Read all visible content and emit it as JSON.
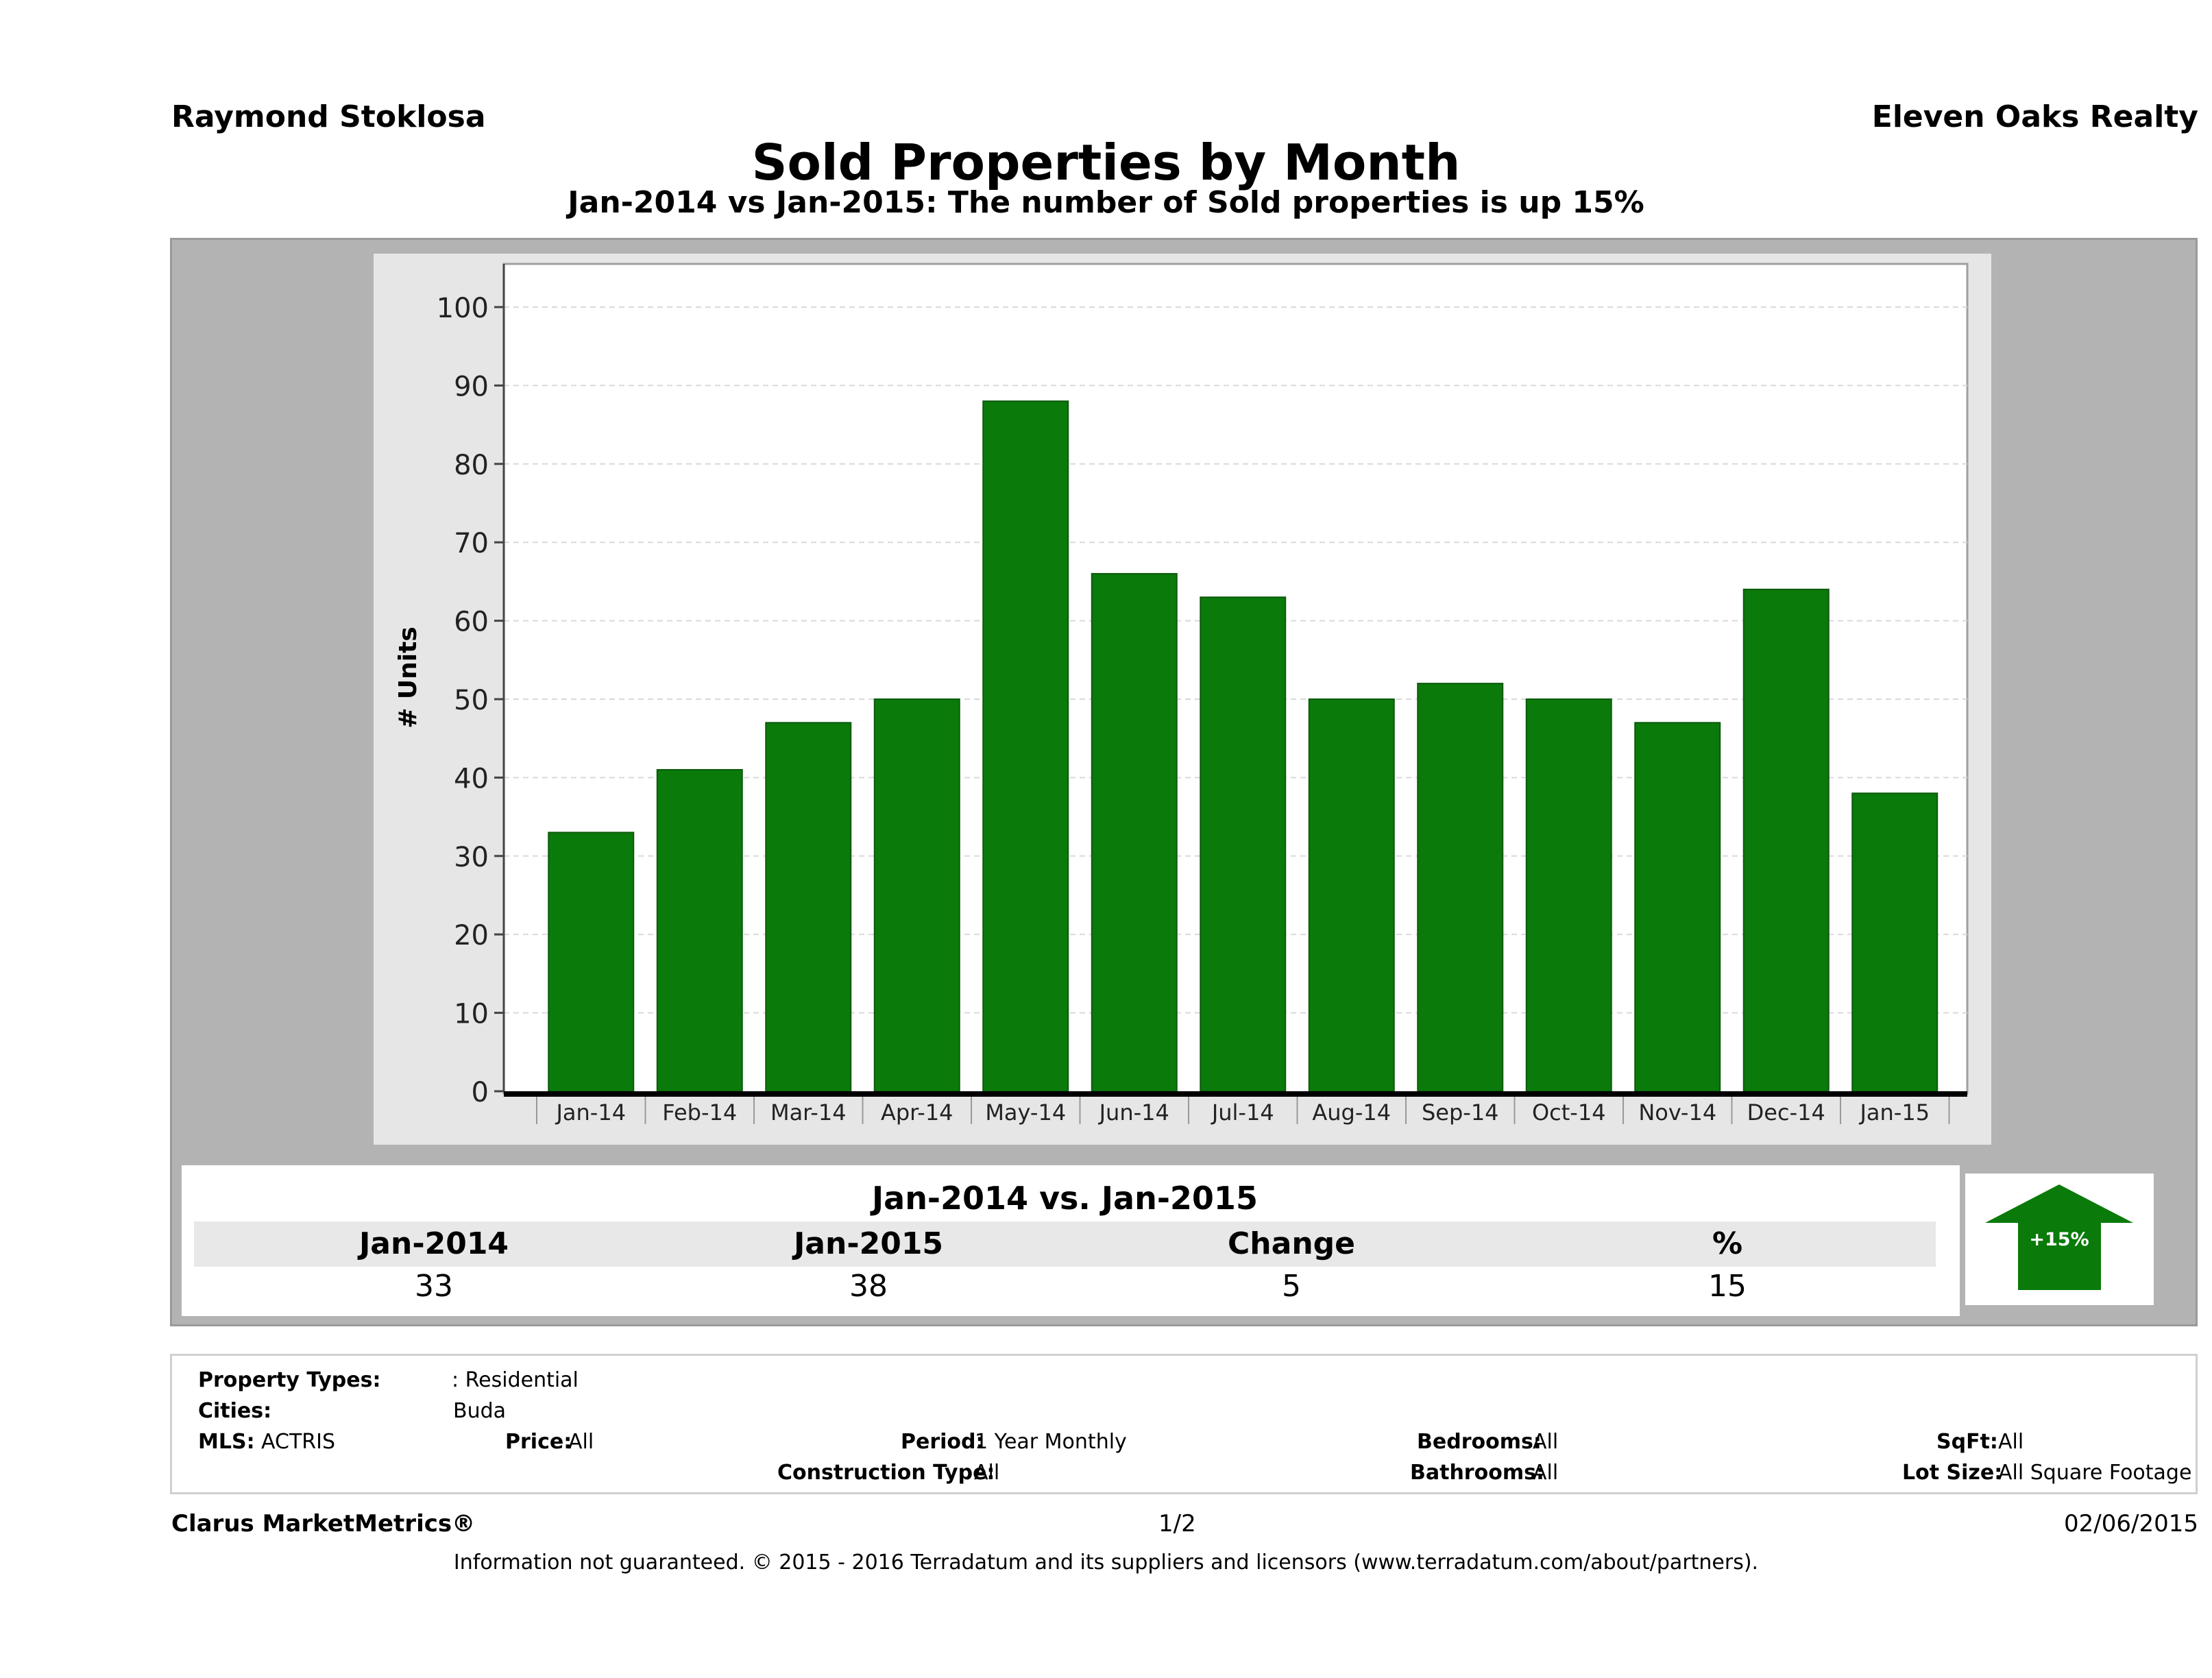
{
  "header": {
    "agent": "Raymond Stoklosa",
    "brokerage": "Eleven Oaks Realty",
    "title": "Sold Properties by Month",
    "subtitle": "Jan-2014 vs Jan-2015: The number of Sold  properties is up 15%"
  },
  "chart_data": {
    "type": "bar",
    "categories": [
      "Jan-14",
      "Feb-14",
      "Mar-14",
      "Apr-14",
      "May-14",
      "Jun-14",
      "Jul-14",
      "Aug-14",
      "Sep-14",
      "Oct-14",
      "Nov-14",
      "Dec-14",
      "Jan-15"
    ],
    "values": [
      33,
      41,
      47,
      50,
      88,
      66,
      63,
      50,
      52,
      50,
      47,
      64,
      38
    ],
    "ylabel": "# Units",
    "xlabel": "",
    "ylim": [
      0,
      100
    ],
    "yticks": [
      0,
      10,
      20,
      30,
      40,
      50,
      60,
      70,
      80,
      90,
      100
    ],
    "grid": true,
    "bar_color": "#0a7a0a"
  },
  "summary": {
    "title": "Jan-2014 vs. Jan-2015",
    "headers": [
      "Jan-2014",
      "Jan-2015",
      "Change",
      "%"
    ],
    "values": [
      "33",
      "38",
      "5",
      "15"
    ],
    "badge": "+15%",
    "badge_color": "#0a7a0a"
  },
  "criteria": {
    "property_types_label": "Property Types:",
    "property_types_value": ": Residential",
    "cities_label": "Cities:",
    "cities_value": "Buda",
    "mls_label": "MLS:",
    "mls_value": "ACTRIS",
    "price_label": "Price:",
    "price_value": "All",
    "period_label": "Period:",
    "period_value": "1 Year Monthly",
    "construction_label": "Construction Type:",
    "construction_value": "All",
    "bedrooms_label": "Bedrooms:",
    "bedrooms_value": "All",
    "bathrooms_label": "Bathrooms:",
    "bathrooms_value": "All",
    "sqft_label": "SqFt:",
    "sqft_value": "All",
    "lotsize_label": "Lot Size:",
    "lotsize_value": "All Square Footage"
  },
  "footer": {
    "brand": "Clarus MarketMetrics®",
    "page": "1/2",
    "date": "02/06/2015",
    "disclaimer": "Information not guaranteed. © 2015 - 2016 Terradatum and its suppliers and licensors (www.terradatum.com/about/partners)."
  }
}
